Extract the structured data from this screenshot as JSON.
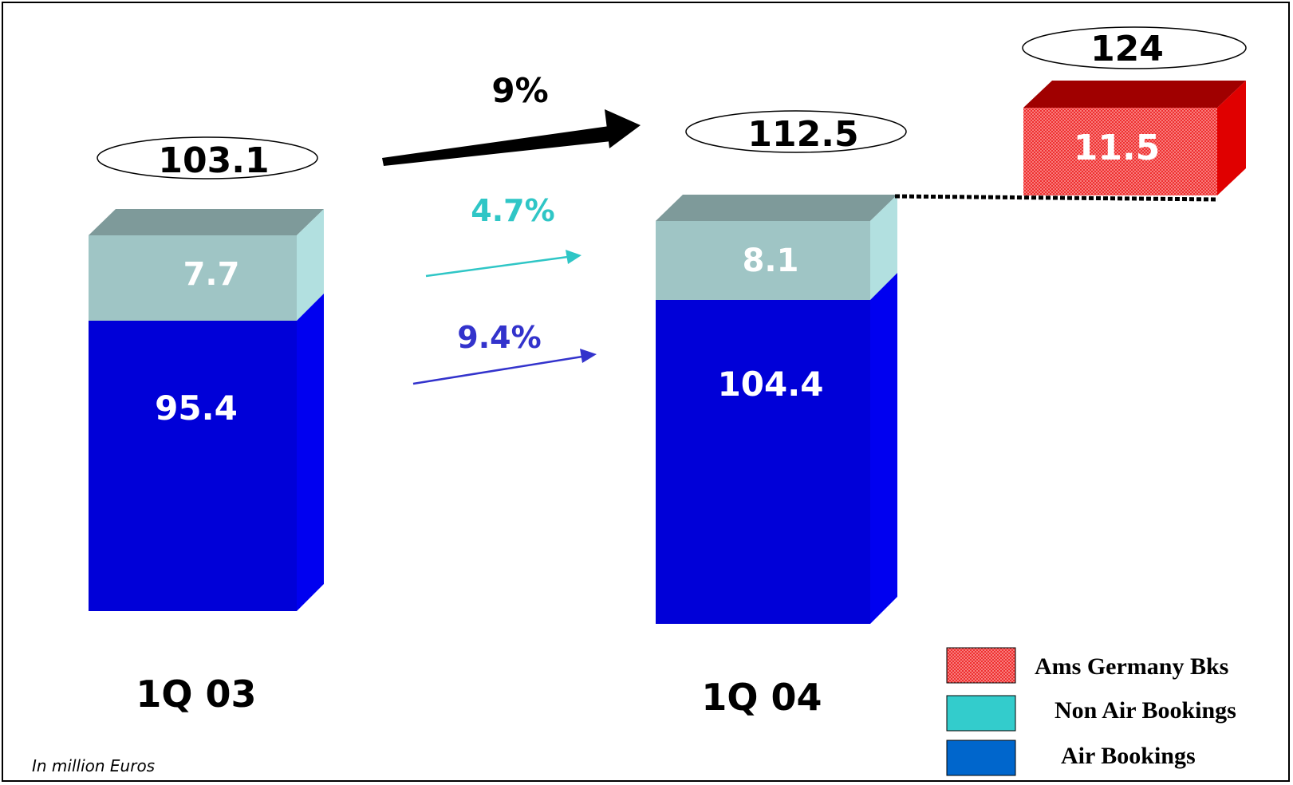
{
  "chart_data": {
    "type": "bar",
    "stacked": true,
    "categories": [
      "1Q 03",
      "1Q 04"
    ],
    "series": [
      {
        "name": "Air Bookings",
        "values": [
          95.4,
          104.4
        ],
        "color": "#0000d8"
      },
      {
        "name": "Non Air Bookings",
        "values": [
          7.7,
          8.1
        ],
        "color": "#9fc5c5"
      }
    ],
    "totals": [
      "103.1",
      "112.5"
    ],
    "data_labels": {
      "air": [
        "95.4",
        "104.4"
      ],
      "non_air": [
        "7.7",
        "8.1"
      ]
    },
    "extra_bar": {
      "name": "Ams Germany Bks",
      "value": 11.5,
      "label": "11.5",
      "total_label": "124",
      "color": "#ee3030"
    },
    "growth": {
      "total": "9%",
      "non_air": "4.7%",
      "air": "9.4%"
    },
    "legend": [
      "Ams Germany Bks",
      "Non Air Bookings",
      "Air Bookings"
    ],
    "legend_position": "bottom-right",
    "note": "In million Euros",
    "colors": {
      "air": "#0000d8",
      "air_side": "#0000f0",
      "non_air": "#9fc5c5",
      "non_air_side": "#b2e0e0",
      "top": "#7e9a9a",
      "extra": "#ee3030",
      "extra_top": "#a00000",
      "extra_side": "#e00000",
      "growth_non_air": "#2fc6c6",
      "growth_air": "#3333cc",
      "legend_air": "#0066cc",
      "legend_non_air": "#33cccc"
    }
  }
}
